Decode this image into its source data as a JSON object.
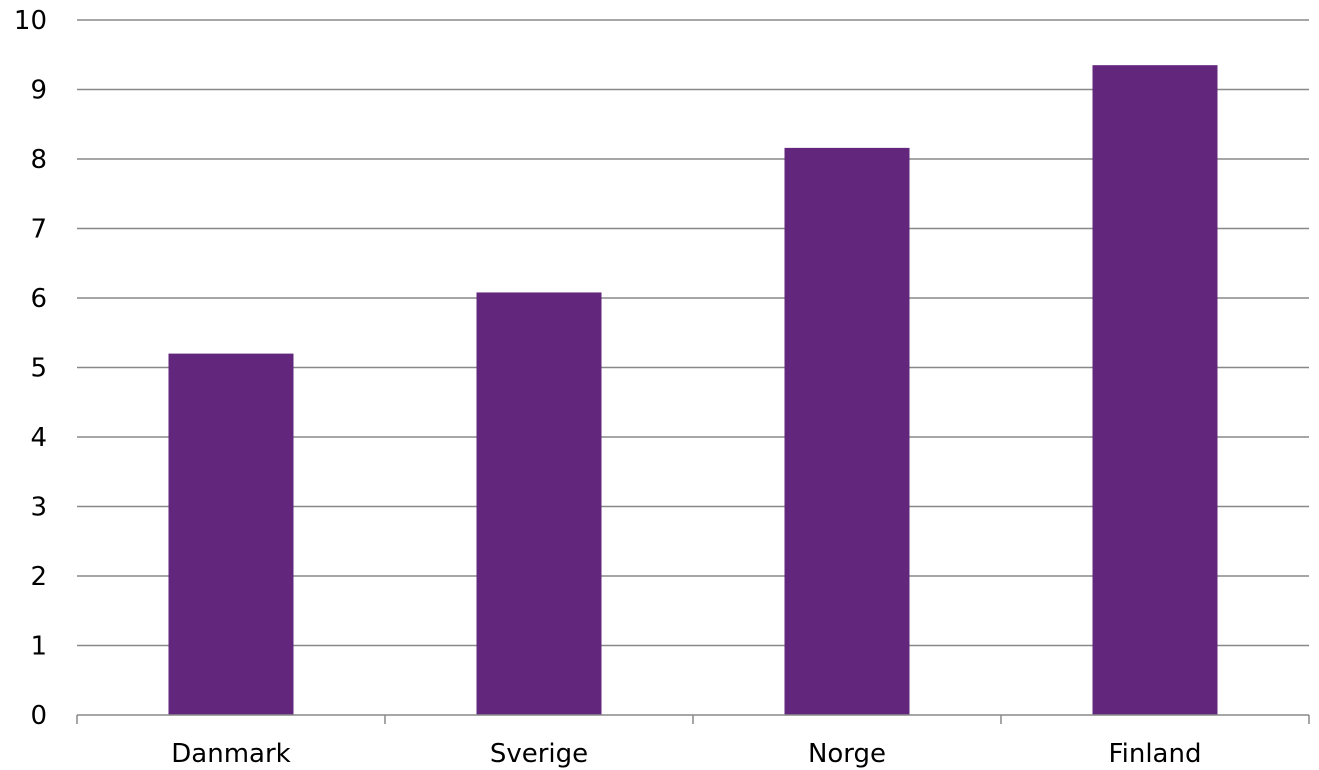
{
  "chart_data": {
    "type": "bar",
    "categories": [
      "Danmark",
      "Sverige",
      "Norge",
      "Finland"
    ],
    "values": [
      5.2,
      6.08,
      8.16,
      9.35
    ],
    "title": "",
    "xlabel": "",
    "ylabel": "",
    "ylim": [
      0,
      10
    ],
    "yticks": [
      "0",
      "1",
      "2",
      "3",
      "4",
      "5",
      "6",
      "7",
      "8",
      "9",
      "10"
    ],
    "grid": true,
    "legend": "none",
    "colors": {
      "bar": "#62267d",
      "grid": "#888888",
      "axis": "#888888"
    }
  }
}
